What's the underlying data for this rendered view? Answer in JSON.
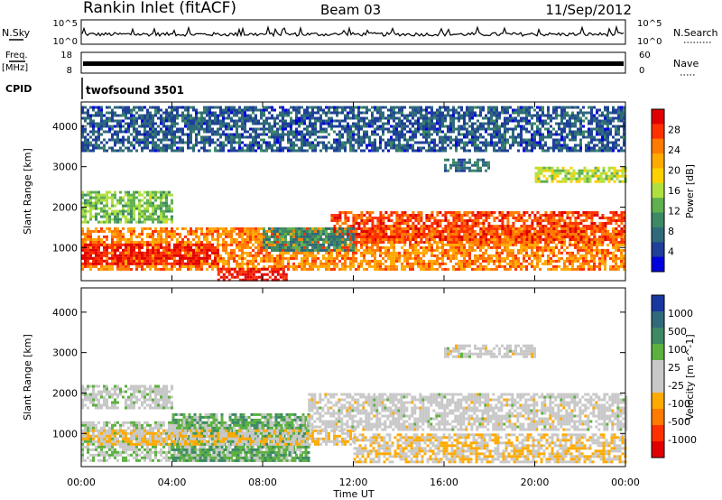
{
  "header": {
    "station": "Rankin Inlet (fitACF)",
    "beam": "Beam 03",
    "date": "11/Sep/2012"
  },
  "nsky_panel": {
    "left_label": "N.Sky",
    "left_ticks": [
      "10^5",
      "10^0"
    ],
    "right_label": "N.Search",
    "right_ticks": [
      "10^5",
      "10^0"
    ]
  },
  "freq_panel": {
    "left_label_top": "Freq.",
    "left_label_bottom": "[MHz]",
    "left_ticks": [
      "18",
      "8"
    ],
    "right_label": "Nave",
    "right_ticks": [
      "60",
      "0"
    ]
  },
  "cpid": {
    "label": "CPID",
    "value": "twofsound 3501"
  },
  "chart_data": [
    {
      "type": "heatmap",
      "name": "power",
      "ylabel": "Slant Range [km]",
      "xlabel": "",
      "xticks": [
        "00:00",
        "04:00",
        "08:00",
        "12:00",
        "16:00",
        "20:00",
        "00:00"
      ],
      "xlim_hours": [
        0,
        24
      ],
      "ylim": [
        180,
        4600
      ],
      "yticks": [
        1000,
        2000,
        3000,
        4000
      ],
      "colorbar": {
        "label": "Power [dB]",
        "ticks": [
          "28",
          "24",
          "20",
          "16",
          "12",
          "8",
          "4"
        ],
        "colors": [
          "#e00000",
          "#ff3000",
          "#ff7a00",
          "#ffaa00",
          "#ffd000",
          "#b0e040",
          "#60b050",
          "#3c8a64",
          "#2f6a7a",
          "#1f3f9a",
          "#0000dd"
        ]
      },
      "bands": [
        {
          "t0": 0,
          "t1": 24,
          "r0": 450,
          "r1": 1500,
          "value": 24
        },
        {
          "t0": 0,
          "t1": 6,
          "r0": 600,
          "r1": 1100,
          "value": 30
        },
        {
          "t0": 6,
          "t1": 9,
          "r0": 200,
          "r1": 500,
          "value": 30
        },
        {
          "t0": 11,
          "t1": 24,
          "r0": 1100,
          "r1": 1900,
          "value": 27
        },
        {
          "t0": 0,
          "t1": 4,
          "r0": 1600,
          "r1": 2400,
          "value": 14
        },
        {
          "t0": 16,
          "t1": 18,
          "r0": 2900,
          "r1": 3200,
          "value": 8
        },
        {
          "t0": 8,
          "t1": 12,
          "r0": 900,
          "r1": 1500,
          "value": 10
        },
        {
          "t0": 20,
          "t1": 24,
          "r0": 2600,
          "r1": 3000,
          "value": 16
        },
        {
          "t0": 0,
          "t1": 24,
          "r0": 3400,
          "r1": 4500,
          "value": 6
        }
      ]
    },
    {
      "type": "heatmap",
      "name": "velocity",
      "ylabel": "Slant Range [km]",
      "xlabel": "Time UT",
      "xticks": [
        "00:00",
        "04:00",
        "08:00",
        "12:00",
        "16:00",
        "20:00",
        "00:00"
      ],
      "xlim_hours": [
        0,
        24
      ],
      "ylim": [
        180,
        4600
      ],
      "yticks": [
        1000,
        2000,
        3000,
        4000
      ],
      "colorbar": {
        "label": "Velocity [m s^-1]",
        "ticks": [
          "1000",
          "500",
          "100",
          "25",
          "-25",
          "-100",
          "-500",
          "-1000"
        ],
        "colors": [
          "#1838a0",
          "#2f6a7a",
          "#3c8a64",
          "#5cb040",
          "#c8c8c8",
          "#c8c8c8",
          "#ffaa00",
          "#ff7a00",
          "#ff3000",
          "#e00000"
        ]
      },
      "bands": [
        {
          "t0": 0,
          "t1": 10,
          "r0": 300,
          "r1": 1300,
          "value": 200
        },
        {
          "t0": 4,
          "t1": 10,
          "r0": 300,
          "r1": 1500,
          "value": 400
        },
        {
          "t0": 0,
          "t1": 12,
          "r0": 700,
          "r1": 1100,
          "value": -200
        },
        {
          "t0": 10,
          "t1": 24,
          "r0": 1100,
          "r1": 2000,
          "value": 0
        },
        {
          "t0": 12,
          "t1": 24,
          "r0": 300,
          "r1": 1000,
          "value": -200
        },
        {
          "t0": 16,
          "t1": 20,
          "r0": 2900,
          "r1": 3200,
          "value": 0
        },
        {
          "t0": 0,
          "t1": 4,
          "r0": 1600,
          "r1": 2200,
          "value": 60
        }
      ]
    }
  ]
}
